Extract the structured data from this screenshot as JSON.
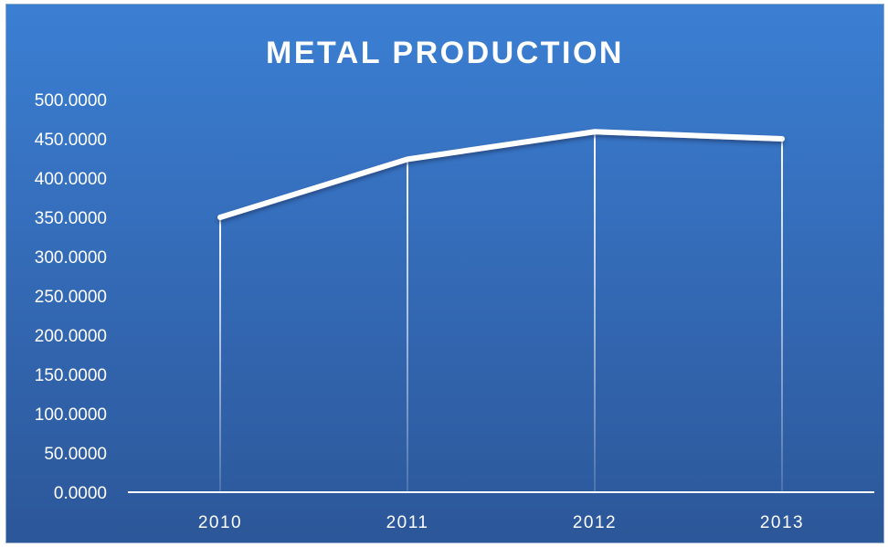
{
  "chart_data": {
    "type": "line",
    "title": "METAL PRODUCTION",
    "xlabel": "",
    "ylabel": "",
    "categories": [
      "2010",
      "2011",
      "2012",
      "2013"
    ],
    "series": [
      {
        "values": [
          350,
          424,
          459,
          450
        ]
      }
    ],
    "ylim": [
      0,
      500
    ],
    "yticks": [
      "0.0000",
      "50.0000",
      "100.0000",
      "150.0000",
      "200.0000",
      "250.0000",
      "300.0000",
      "350.0000",
      "400.0000",
      "450.0000",
      "500.0000"
    ],
    "grid": false,
    "drop_lines": true,
    "legend": "none",
    "colors": {
      "background": "#3470c0",
      "line": "#ffffff",
      "text": "#ffffff"
    }
  }
}
